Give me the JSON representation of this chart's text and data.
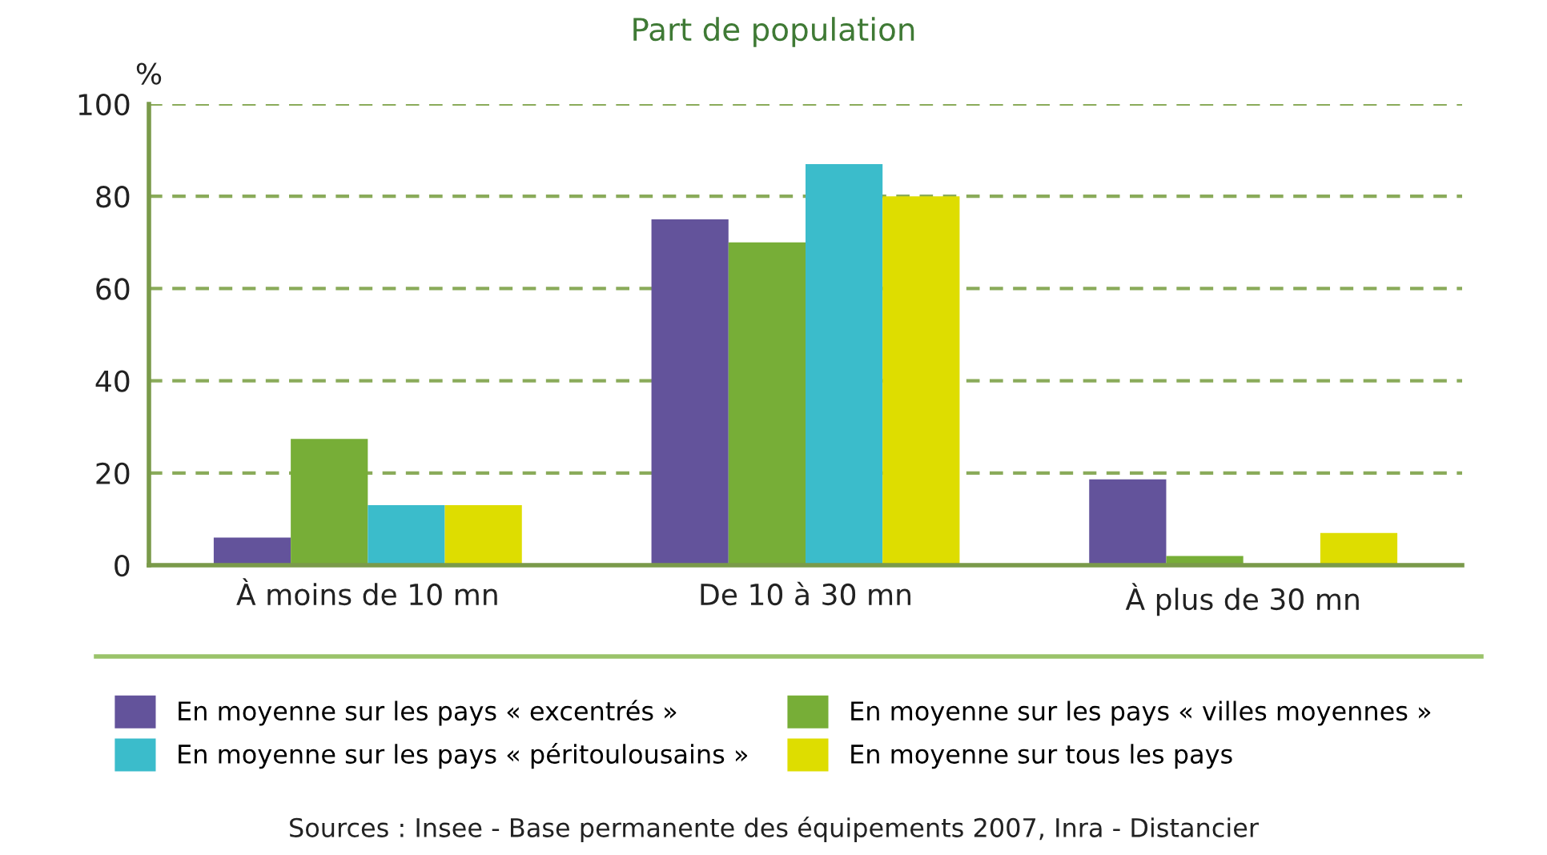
{
  "chart_data": {
    "type": "bar",
    "title": "Part de population",
    "ylabel": "%",
    "categories": [
      "À moins de 10 mn",
      "De 10 à 30 mn",
      "À plus de 30 mn"
    ],
    "series": [
      {
        "name": "En moyenne sur les pays « excentrés »",
        "color": "#63539b",
        "values": [
          6,
          75,
          18.6
        ]
      },
      {
        "name": "En moyenne sur les pays « villes moyennes »",
        "color": "#77ae37",
        "values": [
          27.4,
          70,
          2
        ]
      },
      {
        "name": "En moyenne sur les pays « péritoulousains »",
        "color": "#3bbccb",
        "values": [
          13,
          87,
          0.3
        ]
      },
      {
        "name": "En moyenne sur tous les pays",
        "color": "#dedd00",
        "values": [
          13,
          80,
          7
        ]
      }
    ],
    "ylim": [
      0,
      100
    ],
    "yticks": [
      0,
      20,
      40,
      60,
      80,
      100
    ],
    "grid": "y",
    "legend": "bottom",
    "annotations": [
      "Sources : Insee - Base permanente des équipements 2007, Inra - Distancier"
    ]
  }
}
